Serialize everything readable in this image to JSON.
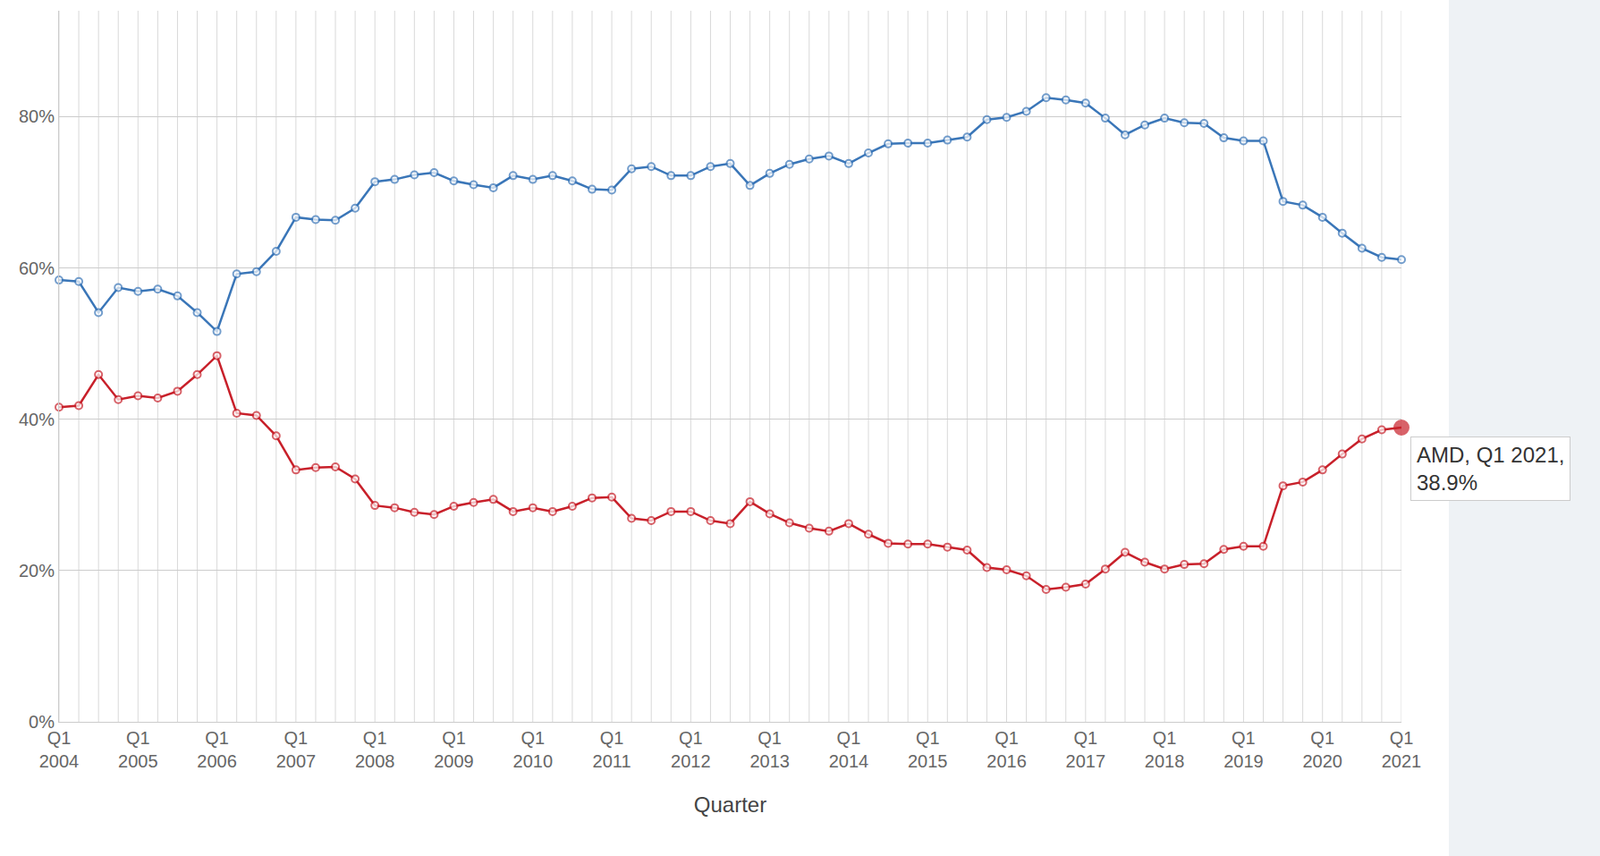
{
  "chart_data": {
    "type": "line",
    "x_label": "Quarter",
    "categories": [
      "Q1 2004",
      null,
      null,
      null,
      "Q1 2005",
      null,
      null,
      null,
      "Q1 2006",
      null,
      null,
      null,
      "Q1 2007",
      null,
      null,
      null,
      "Q1 2008",
      null,
      null,
      null,
      "Q1 2009",
      null,
      null,
      null,
      "Q1 2010",
      null,
      null,
      null,
      "Q1 2011",
      null,
      null,
      null,
      "Q1 2012",
      null,
      null,
      null,
      "Q1 2013",
      null,
      null,
      null,
      "Q1 2014",
      null,
      null,
      null,
      "Q1 2015",
      null,
      null,
      null,
      "Q1 2016",
      null,
      null,
      null,
      "Q1 2017",
      null,
      null,
      null,
      "Q1 2018",
      null,
      null,
      null,
      "Q1 2019",
      null,
      null,
      null,
      "Q1 2020",
      null,
      null,
      null,
      "Q1 2021"
    ],
    "series": [
      {
        "color": "#3a76b8",
        "marker": "circle",
        "values": [
          58.4,
          58.2,
          54.1,
          57.4,
          56.9,
          57.2,
          56.3,
          54.1,
          51.6,
          59.2,
          59.5,
          62.2,
          66.7,
          66.4,
          66.3,
          67.9,
          71.4,
          71.7,
          72.3,
          72.6,
          71.5,
          71.0,
          70.6,
          72.2,
          71.7,
          72.2,
          71.5,
          70.4,
          70.3,
          73.1,
          73.4,
          72.2,
          72.2,
          73.4,
          73.8,
          70.9,
          72.5,
          73.7,
          74.4,
          74.8,
          73.8,
          75.2,
          76.4,
          76.5,
          76.5,
          76.9,
          77.3,
          79.6,
          79.9,
          80.7,
          82.5,
          82.2,
          81.8,
          79.8,
          77.6,
          78.9,
          79.8,
          79.2,
          79.1,
          77.2,
          76.8,
          76.8,
          68.8,
          68.3,
          66.7,
          64.6,
          62.6,
          61.4,
          61.1
        ]
      },
      {
        "name": "AMD",
        "color": "#c8202a",
        "marker": "circle",
        "values": [
          41.6,
          41.8,
          45.9,
          42.6,
          43.1,
          42.8,
          43.7,
          45.9,
          48.4,
          40.8,
          40.5,
          37.8,
          33.3,
          33.6,
          33.7,
          32.1,
          28.6,
          28.3,
          27.7,
          27.4,
          28.5,
          29.0,
          29.4,
          27.8,
          28.3,
          27.8,
          28.5,
          29.6,
          29.7,
          26.9,
          26.6,
          27.8,
          27.8,
          26.6,
          26.2,
          29.1,
          27.5,
          26.3,
          25.6,
          25.2,
          26.2,
          24.8,
          23.6,
          23.5,
          23.5,
          23.1,
          22.7,
          20.4,
          20.1,
          19.3,
          17.5,
          17.8,
          18.2,
          20.2,
          22.4,
          21.1,
          20.2,
          20.8,
          20.9,
          22.8,
          23.2,
          23.2,
          31.2,
          31.7,
          33.3,
          35.4,
          37.4,
          38.6,
          38.9
        ]
      }
    ],
    "ylim": [
      0,
      94
    ],
    "yticks": [
      {
        "value": 0,
        "label": "0%"
      },
      {
        "value": 20,
        "label": "20%"
      },
      {
        "value": 40,
        "label": "40%"
      },
      {
        "value": 60,
        "label": "60%"
      },
      {
        "value": 80,
        "label": "80%"
      }
    ],
    "grid": true,
    "annotations": [
      {
        "text": "AMD, Q1 2021, 38.9%"
      }
    ]
  }
}
